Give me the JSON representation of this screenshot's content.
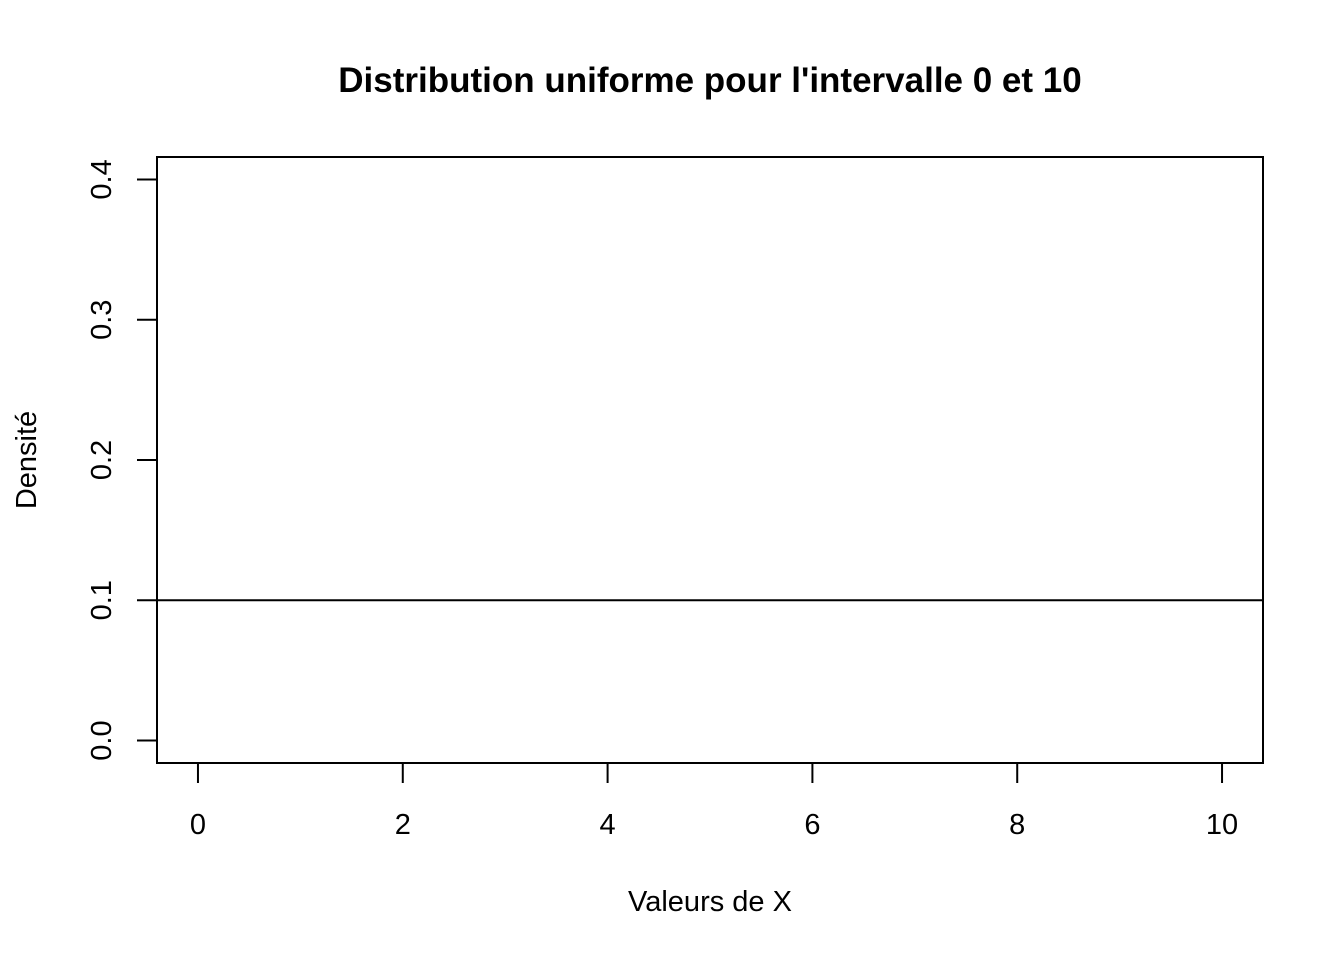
{
  "chart_data": {
    "type": "line",
    "title": "Distribution uniforme pour l'intervalle 0 et 10",
    "xlabel": "Valeurs de X",
    "ylabel": "Densité",
    "xlim": [
      -0.4,
      10.4
    ],
    "ylim": [
      -0.016,
      0.416
    ],
    "x_ticks": [
      0,
      2,
      4,
      6,
      8,
      10
    ],
    "x_tick_labels": [
      "0",
      "2",
      "4",
      "6",
      "8",
      "10"
    ],
    "y_ticks": [
      0.0,
      0.1,
      0.2,
      0.3,
      0.4
    ],
    "y_tick_labels": [
      "0.0",
      "0.1",
      "0.2",
      "0.3",
      "0.4"
    ],
    "grid": false,
    "line_color": "#000000",
    "series": [
      {
        "x": [
          -0.4,
          10.4
        ],
        "y": [
          0.1,
          0.1
        ]
      }
    ]
  }
}
